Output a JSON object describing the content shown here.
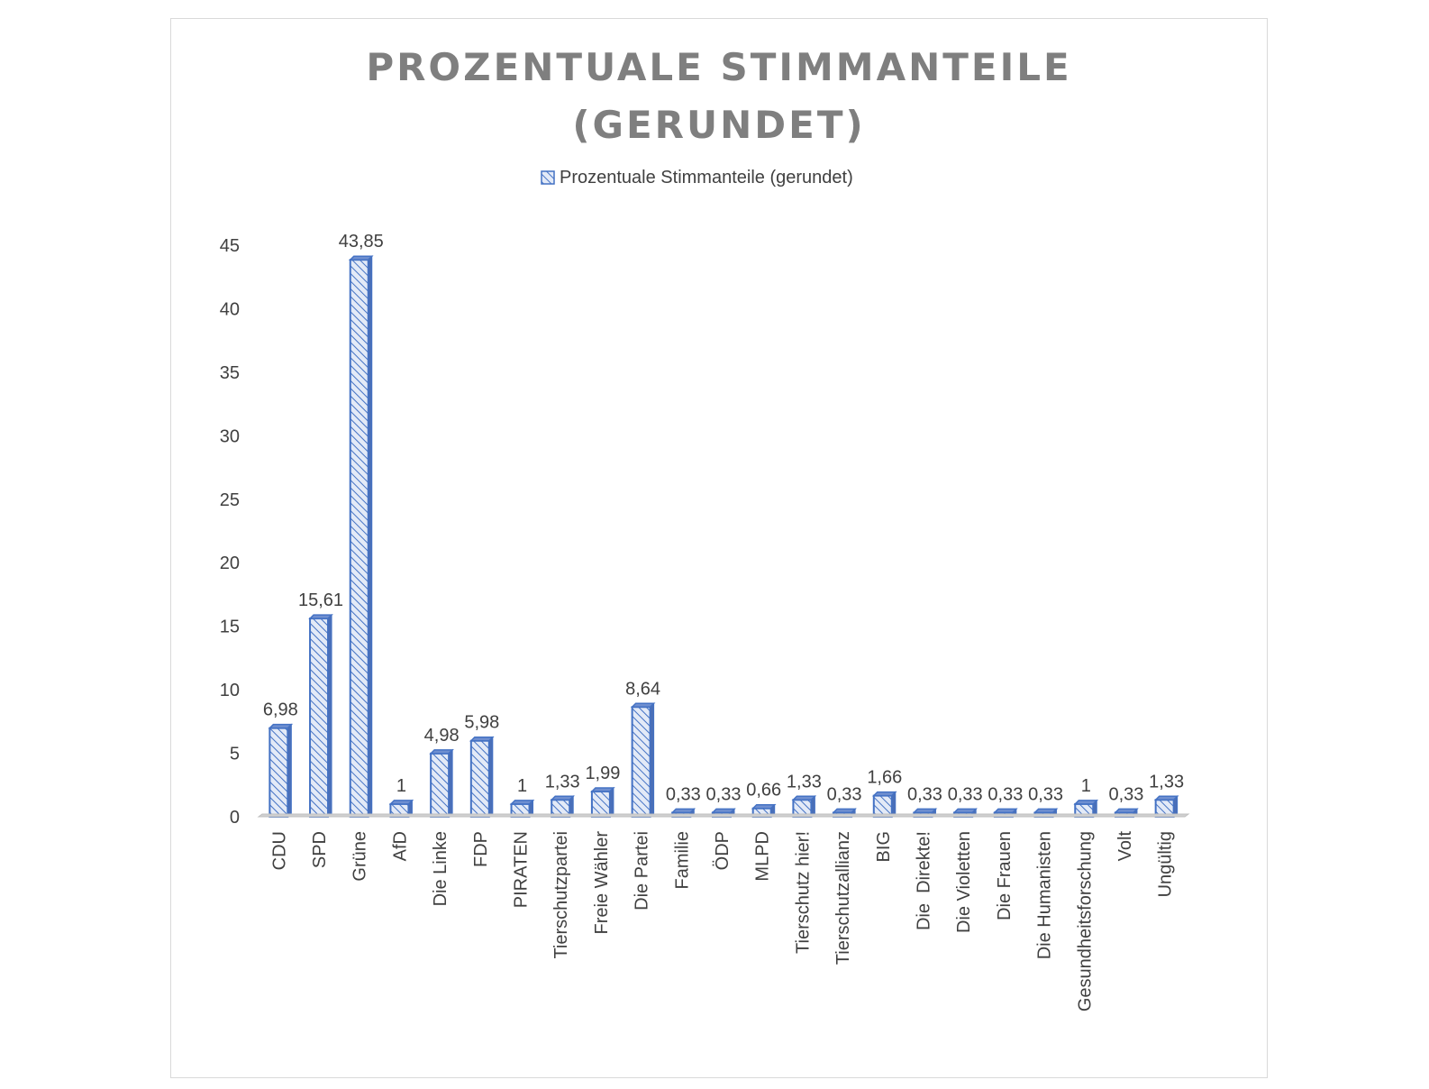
{
  "chart_data": {
    "type": "bar",
    "title_lines": [
      "PROZENTUALE STIMMANTEILE",
      "(GERUNDET)"
    ],
    "legend": {
      "label": "Prozentuale Stimmanteile (gerundet)",
      "position": "top"
    },
    "categories": [
      "CDU",
      "SPD",
      "Grüne",
      "AfD",
      "Die Linke",
      "FDP",
      "PIRATEN",
      "Tierschutzpartei",
      "Freie Wähler",
      "Die Partei",
      "Familie",
      "ÖDP",
      "MLPD",
      "Tierschutz hier!",
      "Tierschutzallianz",
      "BIG",
      "Die  Direkte!",
      "Die Violetten",
      "Die Frauen",
      "Die Humanisten",
      "Gesundheitsforschung",
      "Volt",
      "Ungültig"
    ],
    "series": [
      {
        "name": "Prozentuale Stimmanteile (gerundet)",
        "values": [
          6.98,
          15.61,
          43.85,
          1,
          4.98,
          5.98,
          1,
          1.33,
          1.99,
          8.64,
          0.33,
          0.33,
          0.66,
          1.33,
          0.33,
          1.66,
          0.33,
          0.33,
          0.33,
          0.33,
          1,
          0.33,
          1.33
        ],
        "labels": [
          "6,98",
          "15,61",
          "43,85",
          "1",
          "4,98",
          "5,98",
          "1",
          "1,33",
          "1,99",
          "8,64",
          "0,33",
          "0,33",
          "0,66",
          "1,33",
          "0,33",
          "1,66",
          "0,33",
          "0,33",
          "0,33",
          "0,33",
          "1",
          "0,33",
          "1,33"
        ]
      }
    ],
    "y_ticks": [
      "0",
      "5",
      "10",
      "15",
      "20",
      "25",
      "30",
      "35",
      "40",
      "45"
    ],
    "ylim": [
      0,
      45
    ],
    "grid": false,
    "colors": {
      "bar": "#4472c4",
      "bar_fill": "#dbe4f5",
      "axis": "#bfbfbf",
      "title": "#7f7f7f",
      "text": "#404040"
    }
  }
}
